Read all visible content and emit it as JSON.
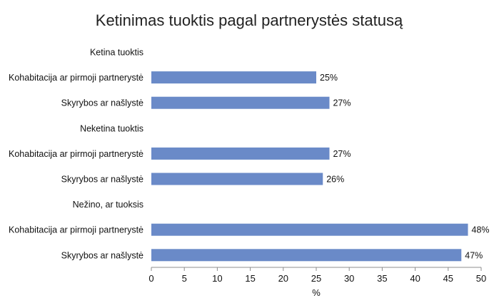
{
  "chart_data": {
    "type": "bar",
    "orientation": "horizontal",
    "title": "Ketinimas tuoktis pagal partnerystės statusą",
    "xlabel": "%",
    "ylabel": "",
    "xlim": [
      0,
      50
    ],
    "x_ticks": [
      0,
      5,
      10,
      15,
      20,
      25,
      30,
      35,
      40,
      45,
      50
    ],
    "grid": false,
    "legend": "none",
    "bar_color": "#6a8ac8",
    "categories": [
      "Ketina tuoktis",
      "Kohabitacija ar pirmoji partnerystė",
      "Skyrybos ar našlystė",
      "Neketina tuoktis",
      "Kohabitacija ar pirmoji partnerystė",
      "Skyrybos ar našlystė",
      "Nežino, ar tuoksis",
      "Kohabitacija ar pirmoji partnerystė",
      "Skyrybos ar našlystė"
    ],
    "values": [
      null,
      25,
      27,
      null,
      27,
      26,
      null,
      48,
      47
    ],
    "data_labels": [
      "",
      "25%",
      "27%",
      "",
      "27%",
      "26%",
      "",
      "48%",
      "47%"
    ]
  }
}
